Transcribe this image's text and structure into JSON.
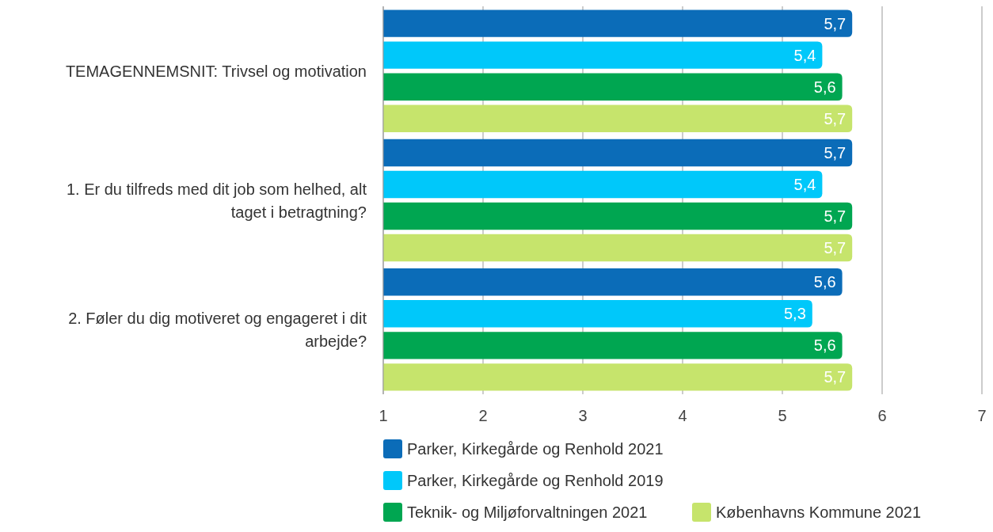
{
  "chart_data": {
    "type": "bar",
    "orientation": "horizontal",
    "categories": [
      "TEMAGENNEMSNIT: Trivsel og motivation",
      "1. Er du tilfreds med dit job som helhed, alt taget i betragtning?",
      "2. Føler du dig motiveret og engageret i dit arbejde?"
    ],
    "series": [
      {
        "name": "Parker, Kirkegårde og Renhold 2021",
        "color": "#0b6cb8",
        "values": [
          5.7,
          5.7,
          5.6
        ],
        "value_labels": [
          "5,7",
          "5,7",
          "5,6"
        ]
      },
      {
        "name": "Parker, Kirkegårde og Renhold 2019",
        "color": "#00c8fa",
        "values": [
          5.4,
          5.4,
          5.3
        ],
        "value_labels": [
          "5,4",
          "5,4",
          "5,3"
        ]
      },
      {
        "name": "Teknik- og Miljøforvaltningen 2021",
        "color": "#00a651",
        "values": [
          5.6,
          5.7,
          5.6
        ],
        "value_labels": [
          "5,6",
          "5,7",
          "5,6"
        ]
      },
      {
        "name": "Københavns Kommune 2021",
        "color": "#c6e46c",
        "values": [
          5.7,
          5.7,
          5.7
        ],
        "value_labels": [
          "5,7",
          "5,7",
          "5,7"
        ]
      }
    ],
    "xlim": [
      1,
      7
    ],
    "xticks": [
      1,
      2,
      3,
      4,
      5,
      6,
      7
    ],
    "grid": "x",
    "legend": "bottom"
  }
}
